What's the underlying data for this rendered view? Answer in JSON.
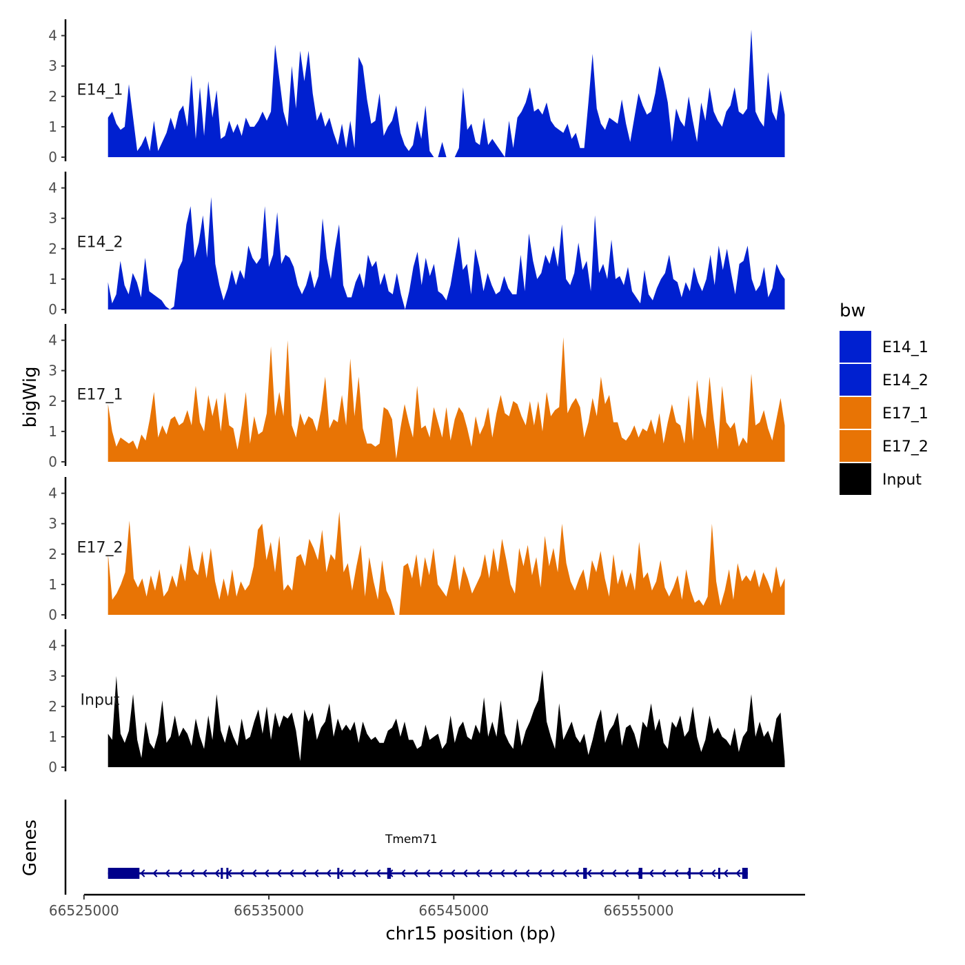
{
  "chart_data": {
    "type": "area",
    "y_axis_title": "bigWig",
    "genes_axis_title": "Genes",
    "x_axis_title": "chr15 position (bp)",
    "chromosome": "chr15",
    "x_range": [
      66526300,
      66562900
    ],
    "xlim": [
      66524000,
      66564000
    ],
    "x_ticks": [
      {
        "value": 66525000,
        "label": "66525000"
      },
      {
        "value": 66535000,
        "label": "66535000"
      },
      {
        "value": 66545000,
        "label": "66545000"
      },
      {
        "value": 66555000,
        "label": "66555000"
      }
    ],
    "ylim": [
      0,
      4.4
    ],
    "y_ticks": [
      {
        "value": 0,
        "label": "0"
      },
      {
        "value": 1,
        "label": "1"
      },
      {
        "value": 2,
        "label": "2"
      },
      {
        "value": 3,
        "label": "3"
      },
      {
        "value": 4,
        "label": "4"
      }
    ],
    "legend": {
      "title": "bw",
      "placement": "right",
      "entries": [
        {
          "label": "E14_1",
          "color": "#0020d0"
        },
        {
          "label": "E14_2",
          "color": "#0020d0"
        },
        {
          "label": "E17_1",
          "color": "#e87405"
        },
        {
          "label": "E17_2",
          "color": "#e87405"
        },
        {
          "label": "Input",
          "color": "#000000"
        }
      ]
    },
    "series": [
      {
        "name": "E14_1",
        "label": "E14_1",
        "color": "#0020d0",
        "values": [
          1.3,
          1.5,
          1.1,
          0.9,
          1.0,
          2.4,
          1.3,
          0.2,
          0.4,
          0.7,
          0.2,
          1.2,
          0.2,
          0.5,
          0.8,
          1.3,
          0.9,
          1.5,
          1.7,
          1.0,
          2.7,
          0.6,
          2.3,
          0.7,
          2.5,
          1.3,
          2.2,
          0.6,
          0.7,
          1.2,
          0.8,
          1.1,
          0.7,
          1.3,
          1.0,
          1.0,
          1.2,
          1.5,
          1.2,
          1.5,
          3.7,
          2.6,
          1.5,
          1.0,
          3.0,
          1.6,
          3.5,
          2.5,
          3.5,
          2.1,
          1.2,
          1.5,
          1.0,
          1.3,
          0.8,
          0.4,
          1.1,
          0.3,
          1.2,
          0.3,
          3.3,
          3.0,
          1.9,
          1.1,
          1.2,
          2.1,
          0.7,
          1.0,
          1.2,
          1.7,
          0.8,
          0.4,
          0.2,
          0.4,
          1.2,
          0.6,
          1.7,
          0.2,
          0.0,
          0.0,
          0.5,
          0.0,
          0.0,
          0.0,
          0.3,
          2.3,
          0.9,
          1.1,
          0.5,
          0.4,
          1.3,
          0.4,
          0.6,
          0.4,
          0.2,
          0.0,
          1.2,
          0.3,
          1.3,
          1.5,
          1.8,
          2.3,
          1.5,
          1.6,
          1.4,
          1.8,
          1.2,
          1.0,
          0.9,
          0.8,
          1.1,
          0.6,
          0.8,
          0.3,
          0.3,
          1.8,
          3.4,
          1.6,
          1.1,
          0.9,
          1.3,
          1.2,
          1.1,
          1.9,
          1.1,
          0.5,
          1.3,
          2.1,
          1.7,
          1.4,
          1.5,
          2.1,
          3.0,
          2.5,
          1.8,
          0.5,
          1.6,
          1.2,
          1.0,
          2.0,
          1.2,
          0.5,
          1.8,
          1.2,
          2.3,
          1.5,
          1.2,
          1.0,
          1.5,
          1.7,
          2.3,
          1.5,
          1.4,
          1.6,
          4.2,
          1.5,
          1.2,
          1.0,
          2.8,
          1.5,
          1.2,
          2.2,
          1.4
        ]
      },
      {
        "name": "E14_2",
        "label": "E14_2",
        "color": "#0020d0",
        "values": [
          0.9,
          0.2,
          0.5,
          1.6,
          0.8,
          0.5,
          1.2,
          0.9,
          0.4,
          1.7,
          0.6,
          0.5,
          0.4,
          0.3,
          0.1,
          0.0,
          0.1,
          1.3,
          1.6,
          2.8,
          3.4,
          1.7,
          2.2,
          3.1,
          1.7,
          3.7,
          1.5,
          0.8,
          0.3,
          0.7,
          1.3,
          0.8,
          1.3,
          1.0,
          2.1,
          1.7,
          1.5,
          1.7,
          3.4,
          1.4,
          1.8,
          3.2,
          1.5,
          1.8,
          1.7,
          1.4,
          0.8,
          0.5,
          0.8,
          1.3,
          0.7,
          1.1,
          3.0,
          1.7,
          1.0,
          2.0,
          2.8,
          0.8,
          0.4,
          0.4,
          0.9,
          1.2,
          0.7,
          1.8,
          1.4,
          1.6,
          0.8,
          1.2,
          0.6,
          0.5,
          1.2,
          0.5,
          0.0,
          0.6,
          1.4,
          1.9,
          0.8,
          1.7,
          1.1,
          1.5,
          0.6,
          0.5,
          0.3,
          0.8,
          1.6,
          2.4,
          1.3,
          1.5,
          0.5,
          2.0,
          1.4,
          0.6,
          1.2,
          0.8,
          0.5,
          0.6,
          1.1,
          0.7,
          0.5,
          0.5,
          1.8,
          0.6,
          2.5,
          1.6,
          1.0,
          1.2,
          1.8,
          1.5,
          2.1,
          1.4,
          2.8,
          1.0,
          0.8,
          1.2,
          2.2,
          1.3,
          1.6,
          0.6,
          3.1,
          1.2,
          1.5,
          1.0,
          2.3,
          1.0,
          1.1,
          0.8,
          1.4,
          0.6,
          0.4,
          0.2,
          1.3,
          0.5,
          0.3,
          0.7,
          1.0,
          1.2,
          1.8,
          1.0,
          0.9,
          0.4,
          0.9,
          0.6,
          1.4,
          0.9,
          0.6,
          1.0,
          1.8,
          0.8,
          2.1,
          1.3,
          2.0,
          1.2,
          0.5,
          1.5,
          1.6,
          2.1,
          1.0,
          0.6,
          0.8,
          1.4,
          0.4,
          0.7,
          1.5,
          1.2,
          1.0
        ]
      },
      {
        "name": "E17_1",
        "label": "E17_1",
        "color": "#e87405",
        "values": [
          1.9,
          1.0,
          0.5,
          0.8,
          0.7,
          0.6,
          0.7,
          0.4,
          0.9,
          0.7,
          1.4,
          2.3,
          0.8,
          1.2,
          0.9,
          1.4,
          1.5,
          1.2,
          1.3,
          1.7,
          1.2,
          2.5,
          1.3,
          1.0,
          2.2,
          1.5,
          2.1,
          1.0,
          2.3,
          1.2,
          1.1,
          0.4,
          1.2,
          2.3,
          0.6,
          1.5,
          0.9,
          1.0,
          1.6,
          3.8,
          1.5,
          2.3,
          1.5,
          4.0,
          1.2,
          0.8,
          1.6,
          1.2,
          1.5,
          1.4,
          1.0,
          1.7,
          2.8,
          1.1,
          1.4,
          1.3,
          2.2,
          1.2,
          3.4,
          1.5,
          2.8,
          1.1,
          0.6,
          0.6,
          0.5,
          0.6,
          1.8,
          1.7,
          1.4,
          0.1,
          1.1,
          1.9,
          1.3,
          0.8,
          2.5,
          1.1,
          1.2,
          0.8,
          1.8,
          1.3,
          0.8,
          1.8,
          0.7,
          1.4,
          1.8,
          1.6,
          1.1,
          0.5,
          1.5,
          0.9,
          1.2,
          1.8,
          0.8,
          1.6,
          2.2,
          1.6,
          1.5,
          2.0,
          1.9,
          1.5,
          1.2,
          2.0,
          1.2,
          2.0,
          1.0,
          2.3,
          1.5,
          1.7,
          1.8,
          4.1,
          1.6,
          1.9,
          2.1,
          1.8,
          0.8,
          1.3,
          2.1,
          1.5,
          2.8,
          1.9,
          2.2,
          1.3,
          1.3,
          0.8,
          0.7,
          0.9,
          1.2,
          0.8,
          1.1,
          1.0,
          1.4,
          0.9,
          1.6,
          0.6,
          1.3,
          1.9,
          1.3,
          1.2,
          0.6,
          2.2,
          0.7,
          2.7,
          1.6,
          1.1,
          2.8,
          1.4,
          0.4,
          2.5,
          1.3,
          1.1,
          1.3,
          0.5,
          0.8,
          0.6,
          2.9,
          1.2,
          1.3,
          1.7,
          1.1,
          0.7,
          1.4,
          2.1,
          1.2
        ]
      },
      {
        "name": "E17_2",
        "label": "E17_2",
        "color": "#e87405",
        "values": [
          2.0,
          0.5,
          0.7,
          1.0,
          1.4,
          3.1,
          1.2,
          0.9,
          1.2,
          0.6,
          1.3,
          0.8,
          1.5,
          0.6,
          0.8,
          1.3,
          0.9,
          1.7,
          1.1,
          2.3,
          1.5,
          1.3,
          2.1,
          1.2,
          2.2,
          1.1,
          0.5,
          1.2,
          0.6,
          1.5,
          0.6,
          1.1,
          0.8,
          1.0,
          1.6,
          2.8,
          3.0,
          1.8,
          2.4,
          1.4,
          2.6,
          0.8,
          1.0,
          0.8,
          1.9,
          2.0,
          1.6,
          2.5,
          2.2,
          1.8,
          2.8,
          1.4,
          2.0,
          1.8,
          3.4,
          1.4,
          1.7,
          0.8,
          1.6,
          2.3,
          0.6,
          1.9,
          1.1,
          0.5,
          1.8,
          0.8,
          0.5,
          0.0,
          0.0,
          1.6,
          1.7,
          1.2,
          2.0,
          0.9,
          1.9,
          1.3,
          2.2,
          1.0,
          0.8,
          0.6,
          1.2,
          2.0,
          0.8,
          1.6,
          1.2,
          0.7,
          1.0,
          1.3,
          2.0,
          1.2,
          2.2,
          1.4,
          2.5,
          1.8,
          1.0,
          0.7,
          2.2,
          1.6,
          2.3,
          1.3,
          1.9,
          0.9,
          2.6,
          1.6,
          2.2,
          1.4,
          3.0,
          1.7,
          1.1,
          0.8,
          1.2,
          1.5,
          0.8,
          1.8,
          1.4,
          2.1,
          1.2,
          0.6,
          2.0,
          1.0,
          1.5,
          0.9,
          1.4,
          0.8,
          2.4,
          1.2,
          1.4,
          0.8,
          1.1,
          1.8,
          0.9,
          0.6,
          0.9,
          1.3,
          0.5,
          1.5,
          0.8,
          0.4,
          0.5,
          0.3,
          0.6,
          3.0,
          1.1,
          0.3,
          0.8,
          1.5,
          0.5,
          1.7,
          1.1,
          1.3,
          1.1,
          1.5,
          0.9,
          1.4,
          1.1,
          0.7,
          1.6,
          0.9,
          1.2
        ]
      },
      {
        "name": "Input",
        "label": "Input",
        "color": "#000000",
        "values": [
          1.1,
          0.9,
          3.0,
          1.1,
          0.8,
          1.2,
          2.4,
          0.9,
          0.3,
          1.5,
          0.8,
          0.6,
          1.1,
          2.2,
          0.8,
          1.0,
          1.7,
          1.0,
          1.3,
          1.1,
          0.7,
          1.6,
          1.0,
          0.6,
          1.7,
          0.9,
          2.4,
          1.2,
          0.8,
          1.4,
          1.0,
          0.7,
          1.6,
          0.9,
          1.0,
          1.5,
          1.9,
          1.1,
          2.0,
          0.9,
          1.8,
          1.3,
          1.7,
          1.6,
          1.8,
          1.2,
          0.2,
          1.9,
          1.5,
          1.8,
          0.9,
          1.3,
          1.5,
          2.1,
          1.0,
          1.6,
          1.2,
          1.4,
          1.2,
          1.5,
          0.8,
          1.5,
          1.1,
          0.9,
          1.0,
          0.8,
          0.8,
          1.2,
          1.3,
          1.6,
          1.0,
          1.5,
          0.9,
          0.9,
          0.6,
          0.7,
          1.4,
          0.9,
          1.0,
          1.1,
          0.6,
          0.8,
          1.7,
          0.8,
          1.3,
          1.5,
          1.0,
          0.9,
          1.4,
          1.1,
          2.3,
          1.0,
          1.5,
          1.0,
          2.2,
          1.1,
          0.8,
          0.6,
          1.6,
          0.7,
          1.2,
          1.5,
          1.9,
          2.2,
          3.2,
          1.5,
          1.0,
          0.6,
          2.1,
          0.9,
          1.2,
          1.5,
          1.0,
          0.8,
          1.1,
          0.4,
          0.9,
          1.5,
          1.9,
          0.8,
          1.2,
          1.4,
          1.8,
          0.7,
          1.3,
          1.4,
          1.1,
          0.6,
          1.5,
          1.3,
          2.1,
          1.2,
          1.6,
          0.8,
          0.6,
          1.5,
          1.3,
          1.7,
          1.0,
          1.2,
          2.0,
          1.0,
          0.5,
          0.9,
          1.7,
          1.1,
          1.3,
          1.0,
          0.9,
          0.7,
          1.3,
          0.5,
          1.0,
          1.2,
          2.4,
          1.0,
          1.5,
          1.0,
          1.2,
          0.8,
          1.6,
          1.8,
          0.2
        ]
      }
    ],
    "genes": [
      {
        "name": "Tmem71",
        "start": 66526300,
        "end": 66560900,
        "strand": "-",
        "exons": [
          [
            66526300,
            66528000
          ],
          [
            66532400,
            66532500
          ],
          [
            66532700,
            66532800
          ],
          [
            66538700,
            66538800
          ],
          [
            66541400,
            66541600
          ],
          [
            66552000,
            66552200
          ],
          [
            66555000,
            66555200
          ],
          [
            66557700,
            66557800
          ],
          [
            66559300,
            66559400
          ],
          [
            66560600,
            66560900
          ]
        ]
      }
    ],
    "gene_color": "#00008b"
  }
}
